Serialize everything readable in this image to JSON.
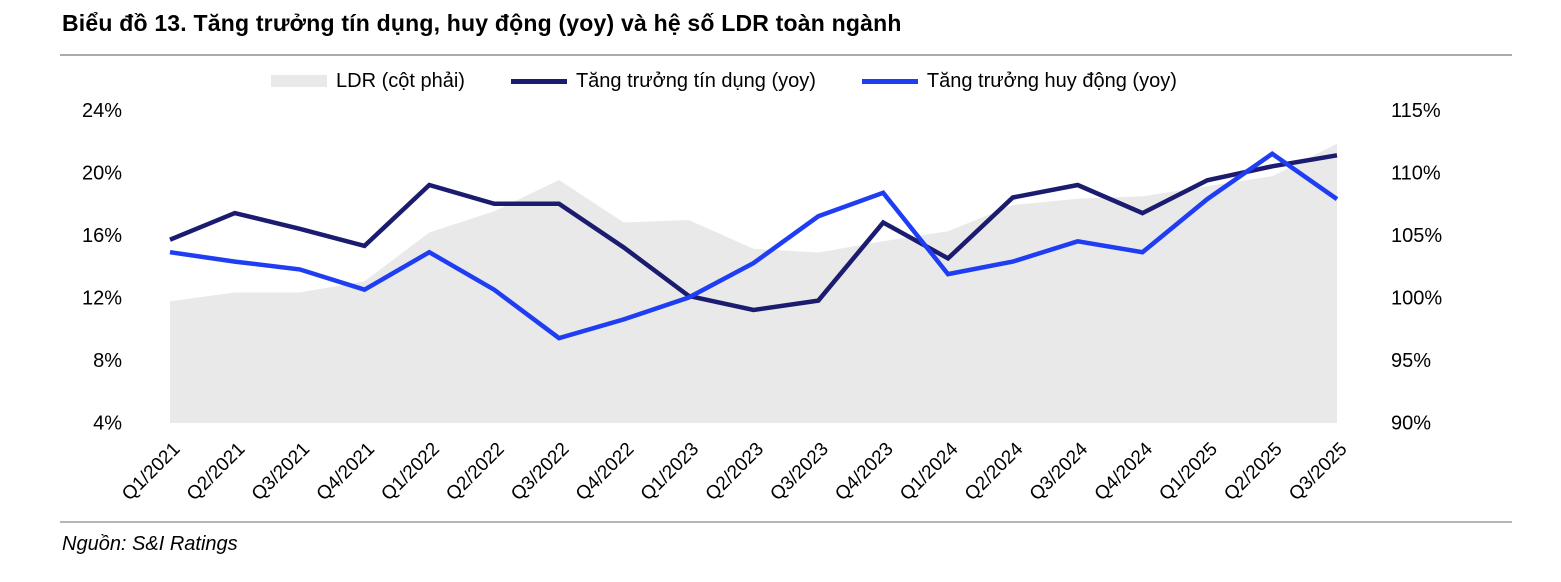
{
  "chart_data": {
    "type": "combo-area-line",
    "title": "Biểu đồ 13. Tăng trưởng tín dụng, huy động (yoy) và hệ số LDR toàn ngành",
    "categories": [
      "Q1/2021",
      "Q2/2021",
      "Q3/2021",
      "Q4/2021",
      "Q1/2022",
      "Q2/2022",
      "Q3/2022",
      "Q4/2022",
      "Q1/2023",
      "Q2/2023",
      "Q3/2023",
      "Q4/2023",
      "Q1/2024",
      "Q2/2024",
      "Q3/2024",
      "Q4/2024",
      "Q1/2025",
      "Q2/2025",
      "Q3/2025"
    ],
    "series": [
      {
        "name": "LDR (cột phải)",
        "type": "area",
        "axis": "right",
        "color": "#e9e9e9",
        "values": [
          99.7,
          100.4,
          100.4,
          101.3,
          105.2,
          106.9,
          109.4,
          106.0,
          106.2,
          103.9,
          103.6,
          104.5,
          105.3,
          107.4,
          107.9,
          108.1,
          108.9,
          109.7,
          112.3
        ]
      },
      {
        "name": "Tăng trưởng tín dụng (yoy)",
        "type": "line",
        "axis": "left",
        "color": "#1b1b70",
        "values": [
          15.7,
          17.4,
          16.4,
          15.3,
          19.2,
          18.0,
          18.0,
          15.2,
          12.1,
          11.2,
          11.8,
          16.8,
          14.5,
          18.4,
          19.2,
          17.4,
          19.5,
          20.4,
          21.1
        ]
      },
      {
        "name": "Tăng trưởng huy động (yoy)",
        "type": "line",
        "axis": "left",
        "color": "#1f3df2",
        "values": [
          14.9,
          14.3,
          13.8,
          12.5,
          14.9,
          12.5,
          9.4,
          10.6,
          12.0,
          14.2,
          17.2,
          18.7,
          13.5,
          14.3,
          15.6,
          14.9,
          18.3,
          21.2,
          18.3
        ]
      }
    ],
    "left_axis": {
      "min": 4,
      "max": 24,
      "unit": "%",
      "ticks": [
        "24%",
        "20%",
        "16%",
        "12%",
        "8%",
        "4%"
      ]
    },
    "right_axis": {
      "min": 90,
      "max": 115,
      "unit": "%",
      "ticks": [
        "115%",
        "110%",
        "105%",
        "100%",
        "95%",
        "90%"
      ]
    },
    "grid": false,
    "legend_position": "top"
  },
  "source": "Nguồn: S&I Ratings"
}
